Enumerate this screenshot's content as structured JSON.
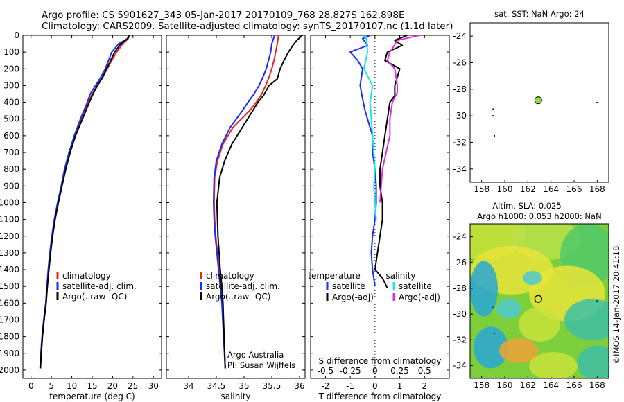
{
  "header": {
    "line1": "Argo profile: CS 5901627_343 05-Jan-2017 20170109_768 28.827S 162.898E",
    "line2": "Climatology: CARS2009. Satellite-adjusted climatology: synTS_20170107.nc (1.1d later)"
  },
  "colors": {
    "climatology": "#e8251e",
    "satellite": "#1a2dff",
    "argo": "#000000",
    "t_satellite": "#1a2dff",
    "s_satellite": "#19e6e8",
    "s_argo": "#e02be0",
    "marker": "#8fe03a"
  },
  "depth_axis": {
    "ylim": [
      0,
      2050
    ],
    "ticks": [
      0,
      100,
      200,
      300,
      400,
      500,
      600,
      700,
      800,
      900,
      1000,
      1100,
      1200,
      1300,
      1400,
      1500,
      1600,
      1700,
      1800,
      1900,
      2000
    ],
    "tick_labels": [
      "0",
      "100",
      "200",
      "300",
      "400",
      "500",
      "600",
      "700",
      "800",
      "900",
      "1000",
      "1100",
      "1200",
      "1300",
      "1400",
      "1500",
      "1600",
      "1700",
      "1800",
      "1900",
      "2000"
    ]
  },
  "chart_data": [
    {
      "id": "temperature",
      "type": "line",
      "title": "",
      "xlabel": "temperature (deg C)",
      "ylabel": "",
      "xlim": [
        -2,
        32
      ],
      "ylim": [
        0,
        2050
      ],
      "x_ticks": [
        0,
        5,
        10,
        15,
        20,
        25,
        30
      ],
      "x_tick_labels": [
        "0",
        "5",
        "10",
        "15",
        "20",
        "25",
        "30"
      ],
      "legend": {
        "position": "bottom-left",
        "entries": [
          "climatology",
          "satellite-adj. clim.",
          "Argo(..raw -QC)"
        ]
      },
      "series": [
        {
          "name": "climatology",
          "color": "#e8251e",
          "x": [
            24.2,
            23.8,
            22.5,
            21.0,
            19.8,
            18.7,
            17.5,
            16.2,
            15.0,
            14.0,
            12.3,
            10.8,
            9.5,
            8.4,
            7.5,
            6.6,
            5.8,
            5.2,
            4.7,
            4.3,
            4.0,
            3.7,
            3.2,
            2.8,
            2.5,
            2.3
          ],
          "y": [
            0,
            20,
            50,
            100,
            150,
            200,
            250,
            300,
            350,
            400,
            500,
            600,
            700,
            800,
            900,
            1000,
            1100,
            1200,
            1300,
            1400,
            1500,
            1600,
            1700,
            1800,
            1900,
            1990
          ]
        },
        {
          "name": "satellite-adj. clim.",
          "color": "#1a2dff",
          "x": [
            24.0,
            23.6,
            21.5,
            19.8,
            19.0,
            18.2,
            17.1,
            15.8,
            14.5,
            13.8,
            12.1,
            10.6,
            9.3,
            8.2,
            7.4,
            6.5,
            5.7,
            5.1,
            4.6,
            4.2,
            3.9,
            3.6,
            3.1,
            2.7,
            2.4,
            2.2
          ],
          "y": [
            0,
            20,
            50,
            100,
            150,
            200,
            250,
            300,
            350,
            400,
            500,
            600,
            700,
            800,
            900,
            1000,
            1100,
            1200,
            1300,
            1400,
            1500,
            1600,
            1700,
            1800,
            1900,
            1990
          ]
        },
        {
          "name": "Argo(..raw -QC)",
          "color": "#000000",
          "x": [
            24.0,
            23.7,
            22.0,
            20.5,
            19.5,
            18.5,
            17.6,
            16.3,
            15.2,
            14.3,
            12.6,
            10.9,
            9.6,
            8.5,
            7.6,
            6.7,
            5.9,
            5.3,
            4.8,
            4.4,
            4.0,
            3.7,
            3.2,
            2.8,
            2.5,
            2.3
          ],
          "y": [
            0,
            20,
            50,
            100,
            150,
            200,
            250,
            300,
            350,
            400,
            500,
            600,
            700,
            800,
            900,
            1000,
            1100,
            1200,
            1300,
            1400,
            1500,
            1600,
            1700,
            1800,
            1900,
            1990
          ]
        }
      ]
    },
    {
      "id": "salinity",
      "type": "line",
      "title": "",
      "xlabel": "salinity",
      "ylabel": "",
      "xlim": [
        33.6,
        36.1
      ],
      "ylim": [
        0,
        2050
      ],
      "x_ticks": [
        34,
        34.5,
        35,
        35.5,
        36
      ],
      "x_tick_labels": [
        "34",
        "34.5",
        "35",
        "35.5",
        "36"
      ],
      "legend": {
        "position": "bottom-left",
        "entries": [
          "climatology",
          "satellite-adj. clim.",
          "Argo(..raw -QC)"
        ]
      },
      "annotation": [
        "Argo Australia",
        "PI: Susan Wijffels"
      ],
      "series": [
        {
          "name": "climatology",
          "color": "#e8251e",
          "x": [
            35.62,
            35.6,
            35.57,
            35.54,
            35.5,
            35.45,
            35.39,
            35.32,
            35.22,
            35.1,
            34.95,
            34.8,
            34.62,
            34.52,
            34.47,
            34.46,
            34.47,
            34.49,
            34.52,
            34.55,
            34.58,
            34.61,
            34.64,
            34.66
          ],
          "y": [
            0,
            50,
            100,
            150,
            200,
            250,
            300,
            350,
            400,
            450,
            500,
            550,
            650,
            750,
            850,
            1000,
            1100,
            1200,
            1300,
            1400,
            1500,
            1600,
            1800,
            1990
          ]
        },
        {
          "name": "satellite-adj. clim.",
          "color": "#1a2dff",
          "x": [
            35.55,
            35.5,
            35.48,
            35.44,
            35.4,
            35.34,
            35.27,
            35.18,
            35.07,
            34.97,
            34.86,
            34.75,
            34.6,
            34.5,
            34.46,
            34.45,
            34.46,
            34.48,
            34.51,
            34.54,
            34.57,
            34.6,
            34.63,
            34.66
          ],
          "y": [
            0,
            50,
            100,
            150,
            200,
            250,
            300,
            350,
            400,
            450,
            500,
            550,
            650,
            750,
            850,
            1000,
            1100,
            1200,
            1300,
            1400,
            1500,
            1600,
            1800,
            1990
          ]
        },
        {
          "name": "Argo(..raw -QC)",
          "color": "#000000",
          "x": [
            36.05,
            35.95,
            35.88,
            35.8,
            35.72,
            35.65,
            35.6,
            35.45,
            35.35,
            35.25,
            35.1,
            34.95,
            34.78,
            34.65,
            34.56,
            34.51,
            34.52,
            34.53,
            34.55,
            34.57,
            34.6,
            34.62,
            34.64,
            34.66
          ],
          "y": [
            0,
            30,
            60,
            100,
            150,
            200,
            260,
            300,
            360,
            400,
            480,
            560,
            650,
            750,
            850,
            1000,
            1100,
            1200,
            1300,
            1400,
            1500,
            1600,
            1800,
            1990
          ]
        }
      ]
    },
    {
      "id": "difference",
      "type": "line",
      "title": "",
      "xlabel": "T difference from climatology",
      "xlabel_top": "S difference from climatology",
      "ylabel": "",
      "xlim": [
        -2.6,
        3.0
      ],
      "ylim": [
        0,
        2050
      ],
      "x_ticks": [
        -2,
        -1,
        0,
        1,
        2
      ],
      "x_tick_labels": [
        "-2",
        "-1",
        "0",
        "1",
        "2"
      ],
      "s_ticks": [
        -0.5,
        -0.25,
        0,
        0.25,
        0.5
      ],
      "s_tick_labels": [
        "-0.5",
        "-0.25",
        "0",
        "0.25",
        "0.5"
      ],
      "s_ticks_t_position": [
        -2,
        -1,
        0,
        1,
        2
      ],
      "legend": {
        "position": "bottom",
        "groups": [
          "temperature",
          "salinity"
        ],
        "entries": [
          "satellite",
          "Argo(-adj)",
          "satellite",
          "Argo(-adj)"
        ]
      },
      "series": [
        {
          "name": "temperature satellite",
          "color": "#1a2dff",
          "x": [
            -0.2,
            -0.5,
            -0.3,
            -1.0,
            -0.7,
            -0.5,
            -0.6,
            -0.5,
            -0.4,
            -0.3,
            -0.1,
            -0.1,
            0.0,
            0.05,
            0.05,
            0.0,
            -0.1,
            -0.15,
            -0.1,
            -0.05,
            0.0
          ],
          "y": [
            0,
            20,
            60,
            100,
            150,
            200,
            300,
            380,
            450,
            500,
            600,
            700,
            800,
            900,
            1000,
            1100,
            1200,
            1300,
            1400,
            1450,
            1500
          ]
        },
        {
          "name": "temperature Argo(-adj)",
          "color": "#000000",
          "x": [
            1.3,
            0.8,
            1.1,
            0.5,
            0.4,
            1.0,
            0.8,
            0.8,
            0.6,
            0.5,
            0.4,
            0.3,
            0.2,
            0.2,
            0.3,
            0.3,
            0.2,
            0.1,
            0.0,
            0.3,
            0.5
          ],
          "y": [
            0,
            30,
            60,
            100,
            150,
            200,
            300,
            360,
            400,
            500,
            600,
            700,
            800,
            900,
            1000,
            1100,
            1200,
            1300,
            1400,
            1450,
            1510
          ]
        },
        {
          "name": "salinity satellite",
          "color": "#19e6e8",
          "x": [
            -0.5,
            -0.35,
            -0.3,
            -0.45,
            -0.1,
            -0.2,
            -0.15,
            -0.1,
            -0.05,
            0.0,
            -0.05,
            0.0,
            0.05
          ],
          "y": [
            0,
            20,
            100,
            200,
            300,
            400,
            500,
            600,
            700,
            800,
            900,
            1000,
            1100
          ]
        },
        {
          "name": "salinity Argo(-adj)",
          "color": "#e02be0",
          "x": [
            1.8,
            0.9,
            0.7,
            0.6,
            0.5,
            0.8,
            0.9,
            0.9,
            0.7,
            0.6,
            0.6,
            0.45,
            0.3,
            0.25,
            0.2
          ],
          "y": [
            0,
            30,
            80,
            100,
            150,
            200,
            300,
            340,
            400,
            500,
            600,
            700,
            800,
            900,
            1000
          ]
        }
      ]
    },
    {
      "id": "sst_map",
      "type": "scatter",
      "title": "sat. SST: NaN Argo: 24",
      "xlim": [
        157,
        169
      ],
      "ylim": [
        -35,
        -23
      ],
      "x_ticks": [
        158,
        160,
        162,
        164,
        166,
        168
      ],
      "y_ticks": [
        -34,
        -32,
        -30,
        -28,
        -26,
        -24
      ],
      "y_tick_labels": [
        "-34",
        "-32",
        "-30",
        "-28",
        "-26",
        "-24"
      ],
      "profile": {
        "lon": 162.898,
        "lat": -28.827
      },
      "points": [
        {
          "lon": 159.0,
          "lat": -29.5
        },
        {
          "lon": 159.0,
          "lat": -30.0
        },
        {
          "lon": 159.1,
          "lat": -31.5
        },
        {
          "lon": 168.0,
          "lat": -29.0
        }
      ]
    },
    {
      "id": "sla_map",
      "type": "heatmap",
      "title": "Altim. SLA: 0.025",
      "subtitle": "Argo h1000: 0.053 h2000: NaN",
      "xlim": [
        157,
        169
      ],
      "ylim": [
        -35,
        -23
      ],
      "x_ticks": [
        158,
        160,
        162,
        164,
        166,
        168
      ],
      "x_tick_labels": [
        "158",
        "160",
        "162",
        "164",
        "166",
        "168"
      ],
      "y_ticks": [
        -34,
        -32,
        -30,
        -28,
        -26,
        -24
      ],
      "y_tick_labels": [
        "-34",
        "-32",
        "-30",
        "-28",
        "-26",
        "-24"
      ],
      "profile": {
        "lon": 162.898,
        "lat": -28.827
      },
      "points": [
        {
          "lon": 159.0,
          "lat": -29.5
        },
        {
          "lon": 159.1,
          "lat": -31.5
        },
        {
          "lon": 168.0,
          "lat": -29.0
        }
      ]
    }
  ],
  "footer_vertical": "©IMOS 14-Jan-2017 20:41:18"
}
